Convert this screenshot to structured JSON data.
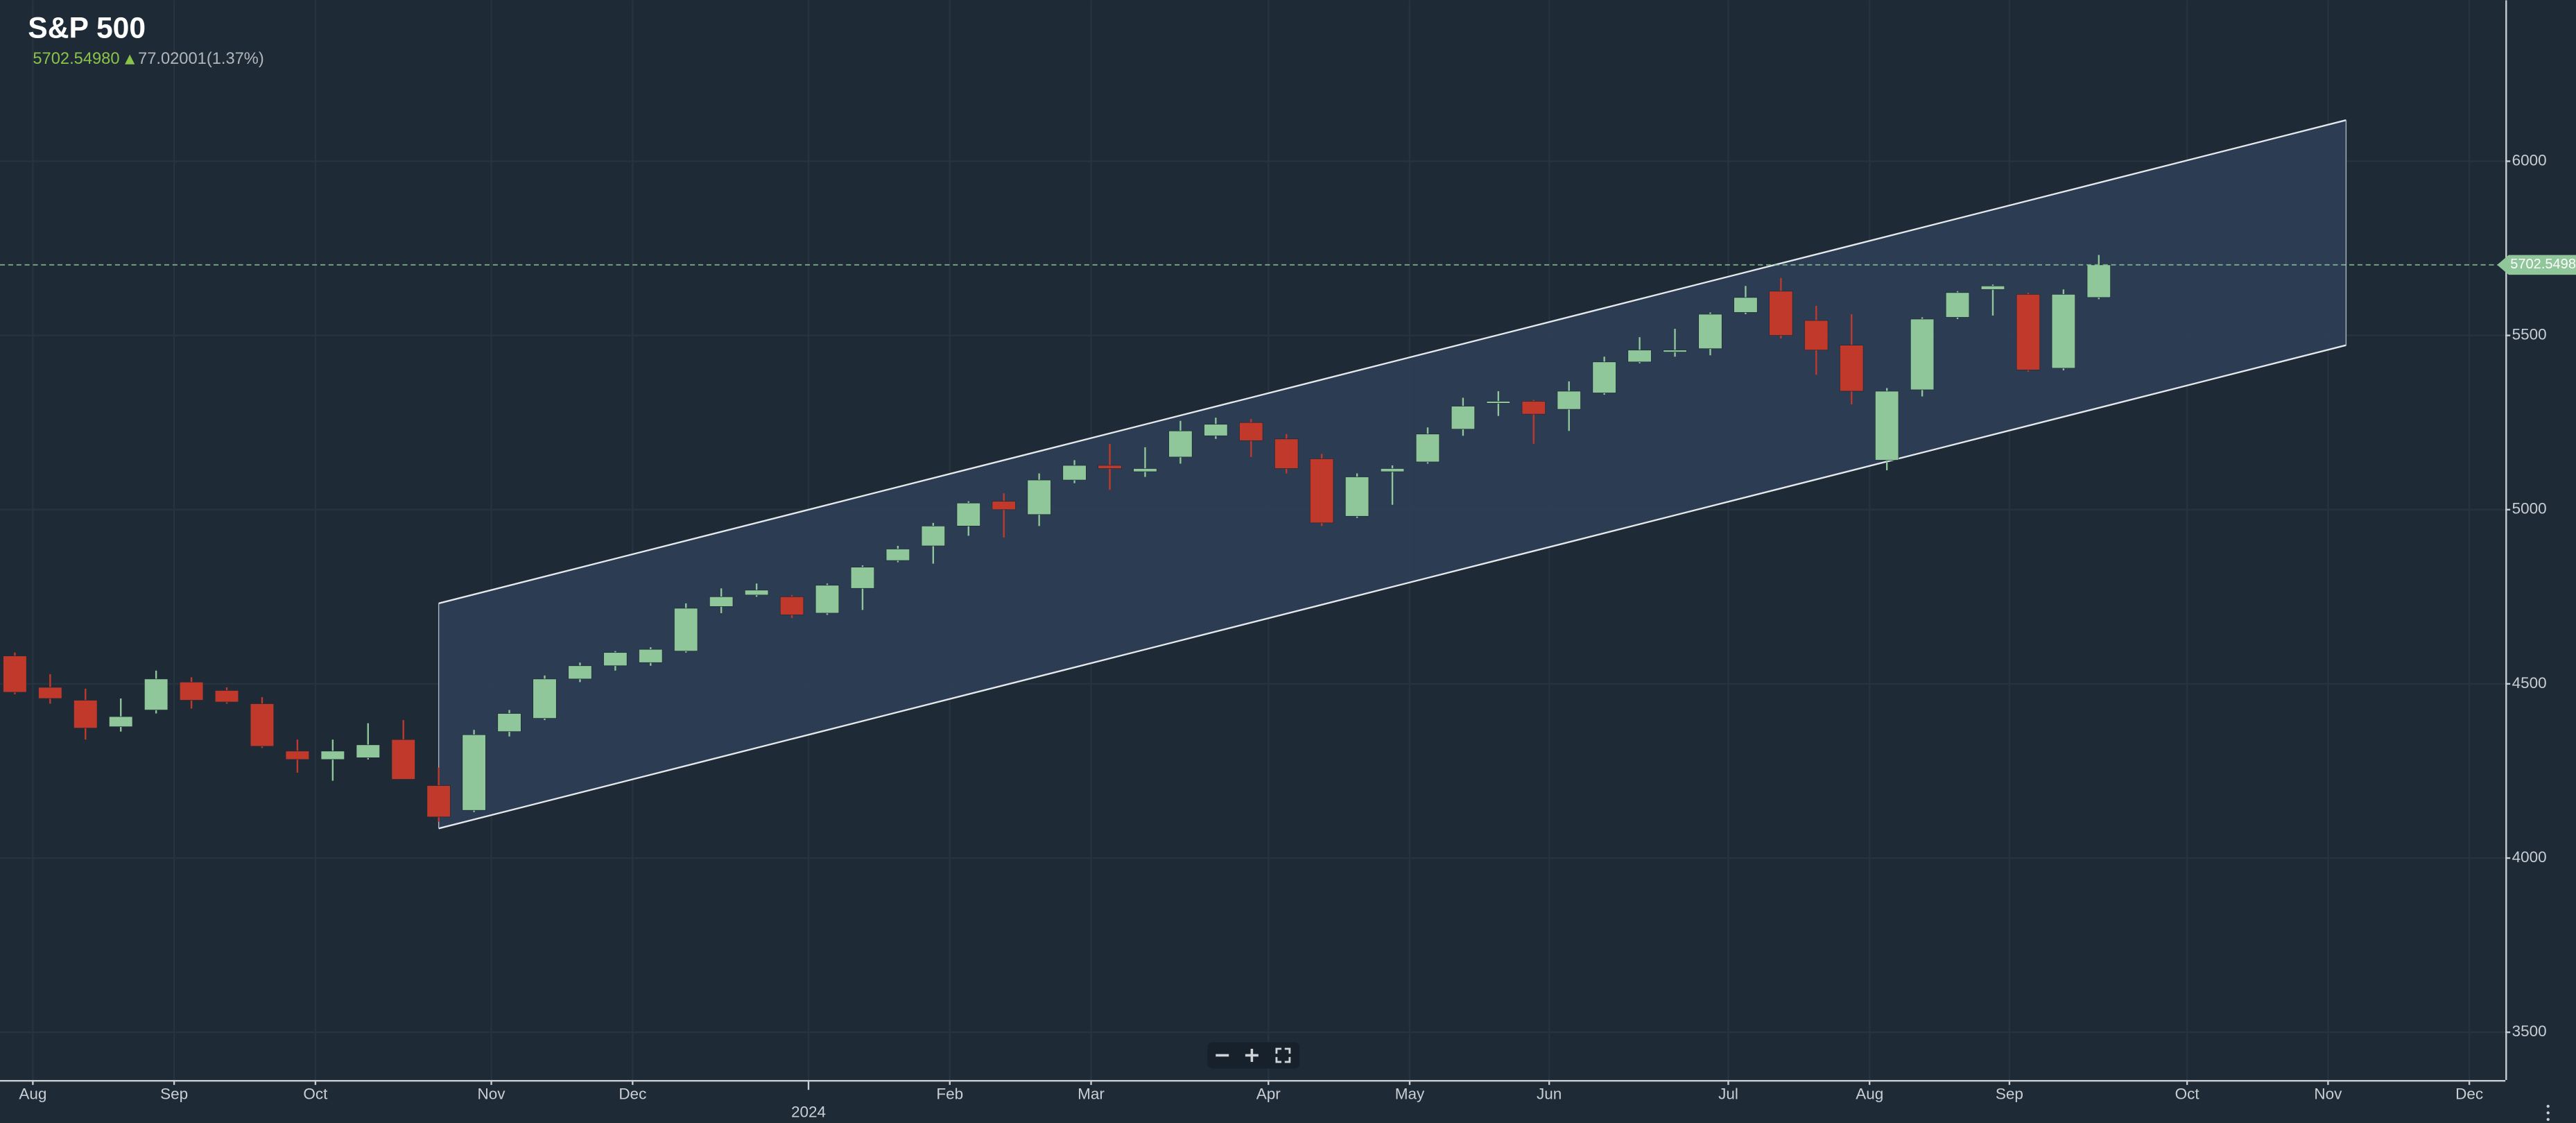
{
  "header": {
    "title": "S&P 500",
    "price": "5702.54980",
    "change": "77.02001(1.37%)"
  },
  "chart_data": {
    "type": "candlestick",
    "x": [
      0,
      1,
      2,
      3,
      4,
      5,
      6,
      7,
      8,
      9,
      10,
      11,
      12,
      13,
      14,
      15,
      16,
      17,
      18,
      19,
      20,
      21,
      22,
      23,
      24,
      25,
      26,
      27,
      28,
      29,
      30,
      31,
      32,
      33,
      34,
      35,
      36,
      37,
      38,
      39,
      40,
      41,
      42,
      43,
      44,
      45,
      46,
      47,
      48,
      49,
      50,
      51,
      52,
      53,
      54,
      55,
      56,
      57,
      58,
      59
    ],
    "series": {
      "up_color": "#8fc79a",
      "down_color": "#c0392b",
      "open": [
        4580,
        4490,
        4453,
        4377,
        4425,
        4505,
        4481,
        4443,
        4307,
        4283,
        4288,
        4340,
        4208,
        4137,
        4363,
        4401,
        4514,
        4552,
        4561,
        4594,
        4722,
        4755,
        4750,
        4703,
        4774,
        4854,
        4896,
        4953,
        5024,
        4986,
        5085,
        5127,
        5109,
        5151,
        5212,
        5250,
        5203,
        5146,
        4981,
        5109,
        5137,
        5231,
        5307,
        5311,
        5288,
        5335,
        5424,
        5453,
        5462,
        5566,
        5627,
        5543,
        5472,
        5142,
        5344,
        5552,
        5632,
        5618,
        5406,
        5609
      ],
      "high": [
        4590,
        4528,
        4486,
        4458,
        4538,
        4519,
        4490,
        4462,
        4340,
        4340,
        4387,
        4396,
        4260,
        4368,
        4425,
        4524,
        4561,
        4594,
        4605,
        4731,
        4774,
        4788,
        4755,
        4788,
        4840,
        4896,
        4962,
        5024,
        5047,
        5104,
        5142,
        5189,
        5179,
        5255,
        5264,
        5260,
        5217,
        5160,
        5104,
        5127,
        5236,
        5321,
        5340,
        5315,
        5368,
        5439,
        5495,
        5519,
        5566,
        5642,
        5665,
        5585,
        5561,
        5349,
        5552,
        5627,
        5646,
        5623,
        5632,
        5731
      ],
      "low": [
        4470,
        4443,
        4340,
        4363,
        4415,
        4429,
        4443,
        4316,
        4245,
        4222,
        4283,
        4226,
        4104,
        4132,
        4349,
        4396,
        4505,
        4538,
        4552,
        4590,
        4703,
        4750,
        4689,
        4698,
        4712,
        4849,
        4845,
        4925,
        4920,
        4953,
        5076,
        5057,
        5094,
        5132,
        5203,
        5151,
        5104,
        4953,
        4976,
        5014,
        5132,
        5212,
        5269,
        5189,
        5226,
        5330,
        5420,
        5439,
        5443,
        5561,
        5491,
        5387,
        5302,
        5113,
        5325,
        5547,
        5557,
        5396,
        5400,
        5604
      ],
      "close": [
        4476,
        4458,
        4373,
        4406,
        4514,
        4453,
        4448,
        4321,
        4283,
        4307,
        4325,
        4226,
        4118,
        4354,
        4415,
        4514,
        4552,
        4590,
        4599,
        4717,
        4750,
        4769,
        4698,
        4783,
        4835,
        4887,
        4953,
        5019,
        5000,
        5085,
        5127,
        5118,
        5118,
        5226,
        5245,
        5198,
        5118,
        4962,
        5094,
        5118,
        5217,
        5297,
        5311,
        5274,
        5340,
        5424,
        5458,
        5458,
        5561,
        5609,
        5500,
        5458,
        5340,
        5340,
        5547,
        5623,
        5642,
        5401,
        5618,
        5702.5498
      ]
    },
    "channel": {
      "color": "#2e4058",
      "x": [
        12.0,
        66.0
      ],
      "upper": [
        4731,
        6118
      ],
      "lower": [
        4085,
        5472
      ]
    },
    "xlim": [
      -0.42,
      70.51
    ],
    "ylim": [
      3363,
      6462
    ],
    "xticks": [
      {
        "value": 0.51,
        "label": "Aug"
      },
      {
        "value": 4.51,
        "label": "Sep"
      },
      {
        "value": 8.51,
        "label": "Oct"
      },
      {
        "value": 13.49,
        "label": "Nov"
      },
      {
        "value": 17.49,
        "label": "Dec"
      },
      {
        "value": 26.47,
        "label": "Feb"
      },
      {
        "value": 30.47,
        "label": "Mar"
      },
      {
        "value": 35.49,
        "label": "Apr"
      },
      {
        "value": 39.49,
        "label": "May"
      },
      {
        "value": 43.44,
        "label": "Jun"
      },
      {
        "value": 48.51,
        "label": "Jul"
      },
      {
        "value": 52.51,
        "label": "Aug"
      },
      {
        "value": 56.47,
        "label": "Sep"
      },
      {
        "value": 61.5,
        "label": "Oct"
      },
      {
        "value": 65.49,
        "label": "Nov"
      },
      {
        "value": 69.49,
        "label": "Dec"
      }
    ],
    "year_ticks": [
      {
        "value": 22.47,
        "label": "2024"
      }
    ],
    "yticks": [
      3500,
      4000,
      4500,
      5000,
      5500,
      6000
    ],
    "grid": true
  }
}
